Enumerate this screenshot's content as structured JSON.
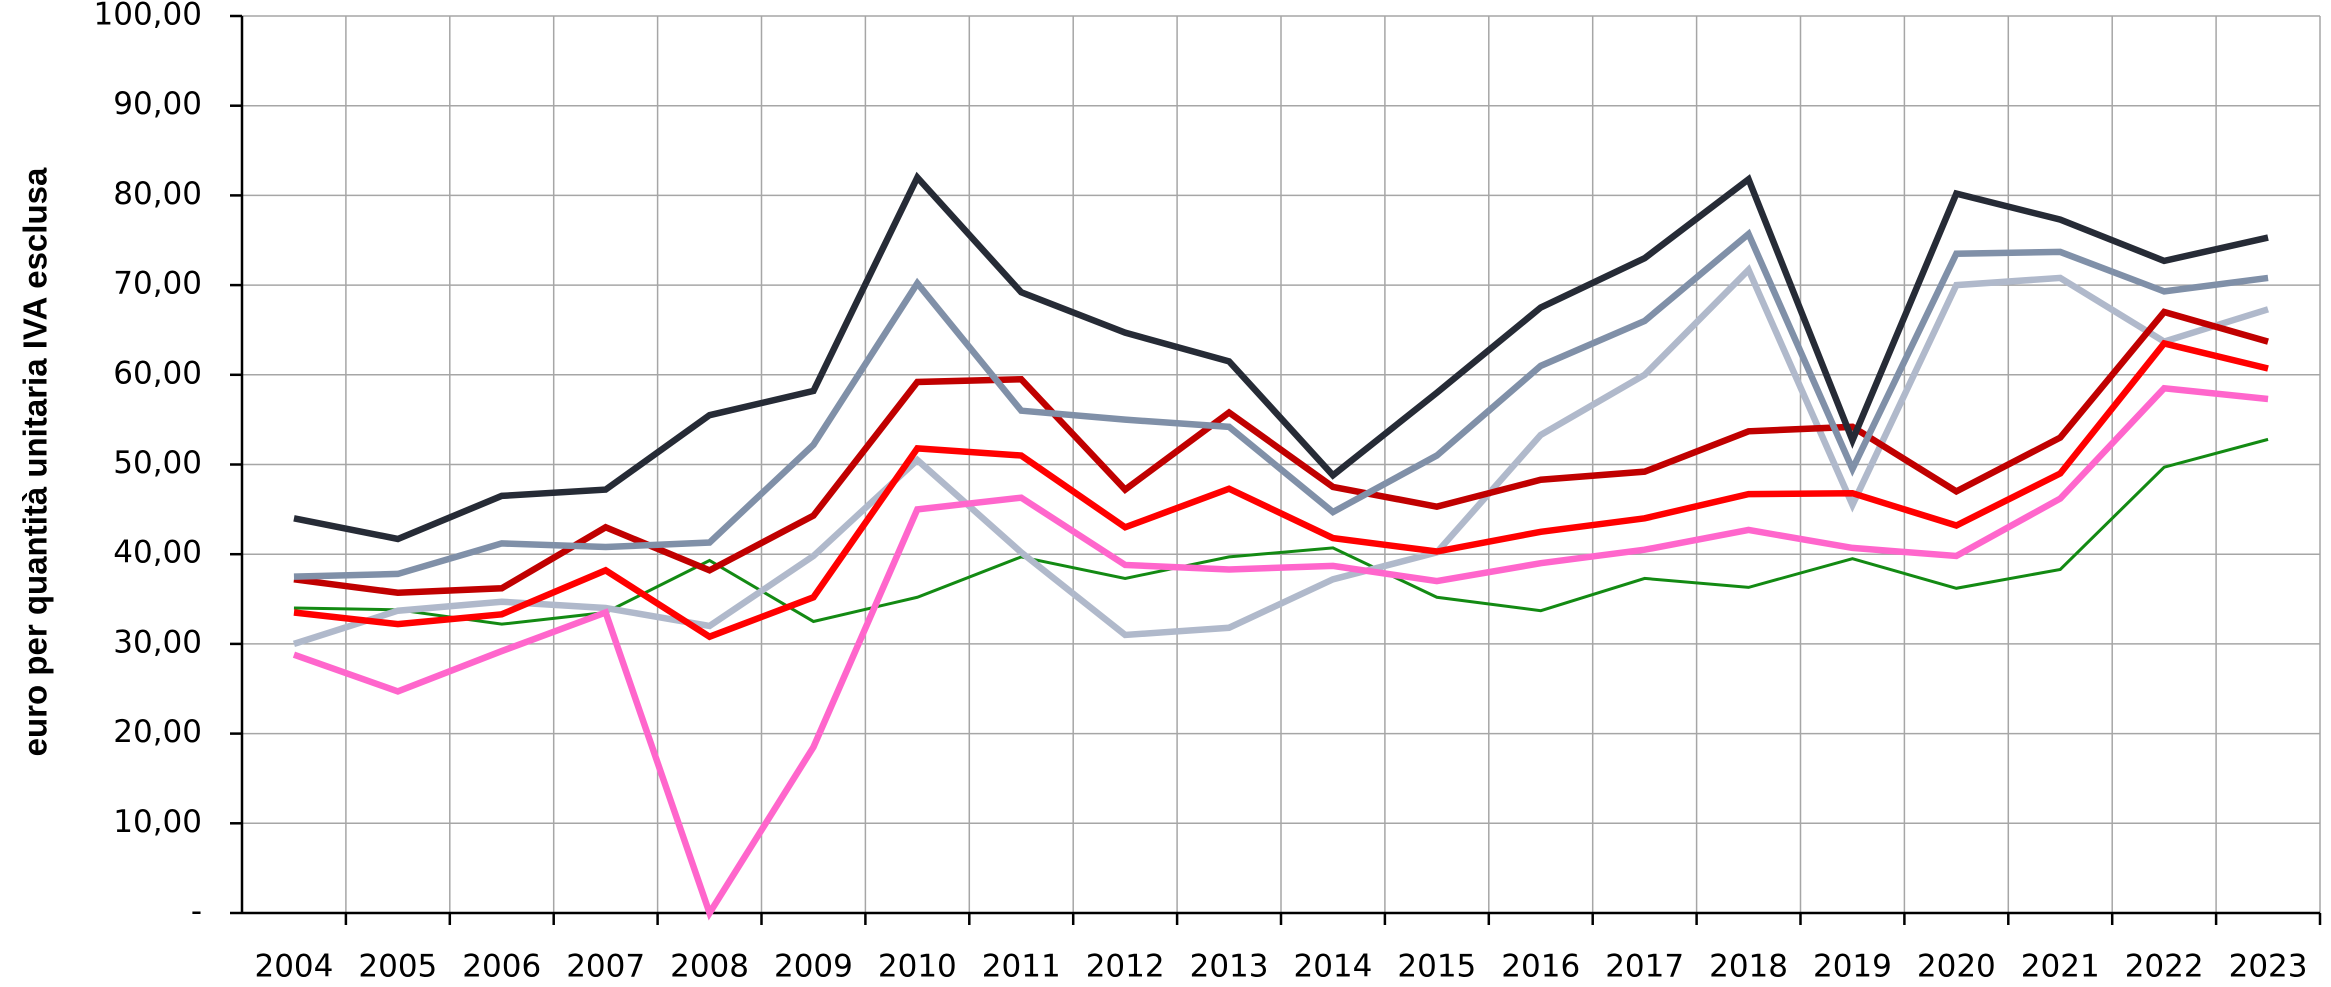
{
  "chart_data": {
    "type": "line",
    "y_label": "euro per quantità unitaria  IVA esclusa",
    "categories": [
      "2004",
      "2005",
      "2006",
      "2007",
      "2008",
      "2009",
      "2010",
      "2011",
      "2012",
      "2013",
      "2014",
      "2015",
      "2016",
      "2017",
      "2018",
      "2019",
      "2020",
      "2021",
      "2022",
      "2023"
    ],
    "ylim": [
      0,
      100
    ],
    "yticks": [
      {
        "value": 0,
        "label": "-"
      },
      {
        "value": 10,
        "label": "10,00"
      },
      {
        "value": 20,
        "label": "20,00"
      },
      {
        "value": 30,
        "label": "30,00"
      },
      {
        "value": 40,
        "label": "40,00"
      },
      {
        "value": 50,
        "label": "50,00"
      },
      {
        "value": 60,
        "label": "60,00"
      },
      {
        "value": 70,
        "label": "70,00"
      },
      {
        "value": 80,
        "label": "80,00"
      },
      {
        "value": 90,
        "label": "90,00"
      },
      {
        "value": 100,
        "label": "100,00"
      }
    ],
    "grid": true,
    "series": [
      {
        "color": "#138a13",
        "values": [
          34,
          33.8,
          32.2,
          33.5,
          39.3,
          32.5,
          35.2,
          39.7,
          37.3,
          39.7,
          40.7,
          35.2,
          33.7,
          37.3,
          36.3,
          39.5,
          36.2,
          38.3,
          49.7,
          52.8
        ]
      },
      {
        "color": "#b0b9cb",
        "values": [
          30,
          33.7,
          34.7,
          34,
          32,
          39.8,
          50.5,
          40.2,
          31,
          31.8,
          37.2,
          40.2,
          53.3,
          60,
          71.7,
          45.5,
          70,
          70.8,
          63.7,
          67.3
        ]
      },
      {
        "color": "#ff66cc",
        "values": [
          28.8,
          24.7,
          29.2,
          33.5,
          0,
          18.5,
          45,
          46.3,
          38.8,
          38.3,
          38.7,
          37,
          39,
          40.5,
          42.7,
          40.7,
          39.8,
          46.2,
          58.5,
          57.3
        ]
      },
      {
        "color": "#ff0000",
        "values": [
          33.5,
          32.2,
          33.3,
          38.2,
          30.8,
          35.2,
          51.8,
          51,
          43,
          47.3,
          41.8,
          40.3,
          42.5,
          44,
          46.7,
          46.8,
          43.2,
          49,
          63.5,
          60.7
        ]
      },
      {
        "color": "#c00000",
        "values": [
          37.2,
          35.7,
          36.2,
          43,
          38.2,
          44.3,
          59.2,
          59.5,
          47.2,
          55.8,
          47.5,
          45.3,
          48.3,
          49.2,
          53.7,
          54.2,
          47,
          53,
          67,
          63.7
        ]
      },
      {
        "color": "#8090a8",
        "values": [
          37.5,
          37.8,
          41.2,
          40.8,
          41.3,
          52.2,
          70.2,
          56,
          55,
          54.2,
          44.7,
          51,
          61,
          66,
          75.7,
          49.5,
          73.5,
          73.7,
          69.3,
          70.8
        ]
      },
      {
        "color": "#262b36",
        "values": [
          44,
          41.7,
          46.5,
          47.2,
          55.5,
          58.2,
          82,
          69.2,
          64.7,
          61.5,
          48.8,
          58,
          67.5,
          73,
          81.8,
          52.7,
          80.2,
          77.3,
          72.7,
          75.3
        ]
      }
    ]
  }
}
